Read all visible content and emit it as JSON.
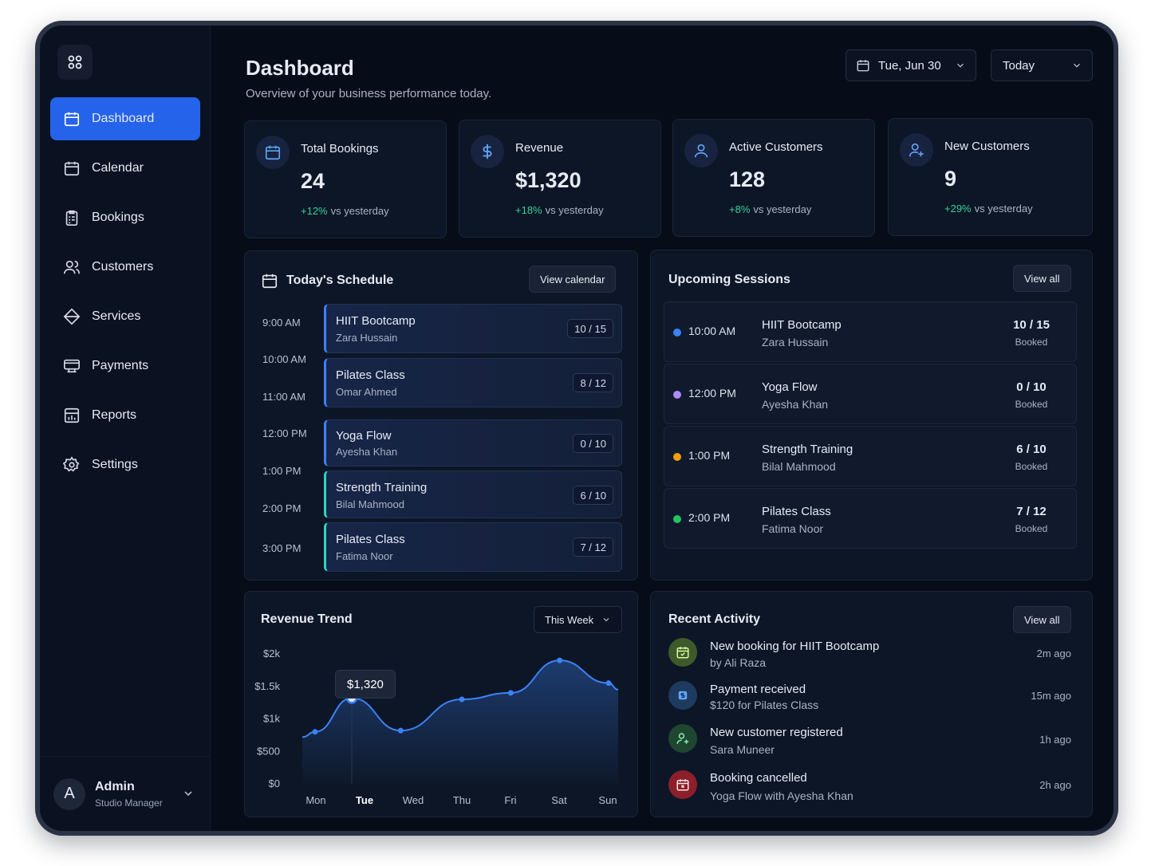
{
  "sidebar": {
    "logo_icon": "grid-icon",
    "items": [
      {
        "label": "Dashboard",
        "icon": "calendar-icon",
        "active": true
      },
      {
        "label": "Calendar",
        "icon": "calendar-icon"
      },
      {
        "label": "Bookings",
        "icon": "clipboard-icon"
      },
      {
        "label": "Customers",
        "icon": "users-icon"
      },
      {
        "label": "Services",
        "icon": "tag-icon"
      },
      {
        "label": "Payments",
        "icon": "card-icon"
      },
      {
        "label": "Reports",
        "icon": "chart-icon"
      },
      {
        "label": "Settings",
        "icon": "gear-icon"
      }
    ],
    "user": {
      "initial": "A",
      "name": "Admin",
      "role": "Studio Manager"
    }
  },
  "header": {
    "title": "Dashboard",
    "subtitle": "Overview of your business performance today.",
    "date_select": "Tue, Jun 30",
    "range_select": "Today"
  },
  "stats": [
    {
      "label": "Total Bookings",
      "value": "24",
      "delta": "+12%",
      "delta_text": "vs yesterday",
      "icon": "calendar-icon"
    },
    {
      "label": "Revenue",
      "value": "$1,320",
      "delta": "+18%",
      "delta_text": "vs yesterday",
      "icon": "dollar-icon"
    },
    {
      "label": "Active Customers",
      "value": "128",
      "delta": "+8%",
      "delta_text": "vs yesterday",
      "icon": "user-icon"
    },
    {
      "label": "New Customers",
      "value": "9",
      "delta": "+29%",
      "delta_text": "vs yesterday",
      "icon": "user-plus-icon"
    }
  ],
  "schedule": {
    "title": "Today's Schedule",
    "button": "View calendar",
    "times": [
      "9:00 AM",
      "10:00 AM",
      "11:00 AM",
      "12:00 PM",
      "1:00 PM",
      "2:00 PM",
      "3:00 PM"
    ],
    "items": [
      {
        "name": "HIIT Bootcamp",
        "who": "Zara Hussain",
        "count": "10 / 15"
      },
      {
        "name": "Pilates Class",
        "who": "Omar Ahmed",
        "count": "8 / 12"
      },
      {
        "name": "Yoga Flow",
        "who": "Ayesha Khan",
        "count": "0 / 10"
      },
      {
        "name": "Strength Training",
        "who": "Bilal Mahmood",
        "count": "6 / 10"
      },
      {
        "name": "Pilates Class",
        "who": "Fatima Noor",
        "count": "7 / 12"
      }
    ]
  },
  "upcoming": {
    "title": "Upcoming Sessions",
    "button": "View all",
    "items": [
      {
        "time": "10:00 AM",
        "name": "HIIT Bootcamp",
        "who": "Zara Hussain",
        "count": "10 / 15",
        "status": "Booked",
        "color": "#3b82f6"
      },
      {
        "time": "12:00 PM",
        "name": "Yoga Flow",
        "who": "Ayesha Khan",
        "count": "0 / 10",
        "status": "Booked",
        "color": "#a78bfa"
      },
      {
        "time": "1:00 PM",
        "name": "Strength Training",
        "who": "Bilal Mahmood",
        "count": "6 / 10",
        "status": "Booked",
        "color": "#f59e0b"
      },
      {
        "time": "2:00 PM",
        "name": "Pilates Class",
        "who": "Fatima Noor",
        "count": "7 / 12",
        "status": "Booked",
        "color": "#22c55e"
      }
    ]
  },
  "revenue": {
    "title": "Revenue Trend",
    "range": "This Week",
    "tooltip": "$1,320"
  },
  "chart_data": {
    "type": "area",
    "categories": [
      "Mon",
      "Tue",
      "Wed",
      "Thu",
      "Fri",
      "Sat",
      "Sun"
    ],
    "x_points": [
      0,
      0.75,
      1.75,
      3,
      4,
      5,
      6
    ],
    "values": [
      800,
      1320,
      820,
      1300,
      1400,
      1900,
      1550
    ],
    "ylim": [
      0,
      2000
    ],
    "y_ticks": [
      "$0",
      "$500",
      "$1k",
      "$1.5k",
      "$2k"
    ],
    "highlight": "Tue",
    "color": "#3b82f6"
  },
  "activity": {
    "title": "Recent Activity",
    "button": "View all",
    "items": [
      {
        "title": "New booking for HIIT Bootcamp",
        "sub": "by Ali Raza",
        "time": "2m ago",
        "icon": "calendar-check-icon",
        "bg": "#3f5a2a",
        "fg": "#a3e635"
      },
      {
        "title": "Payment received",
        "sub": "$120 for Pilates Class",
        "time": "15m ago",
        "icon": "dollar-icon",
        "bg": "#1e3a5f",
        "fg": "#60a5fa"
      },
      {
        "title": "New customer registered",
        "sub": "Sara Muneer",
        "time": "1h ago",
        "icon": "user-plus-icon",
        "bg": "#1e4630",
        "fg": "#4ade80"
      },
      {
        "title": "Booking cancelled",
        "sub": "Yoga Flow with Ayesha Khan",
        "time": "2h ago",
        "icon": "calendar-x-icon",
        "bg": "#8b1f2a",
        "fg": "#fecaca"
      }
    ]
  }
}
